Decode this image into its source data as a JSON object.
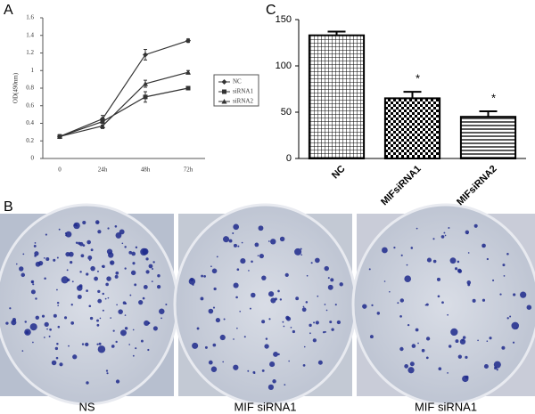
{
  "panels": {
    "labels": [
      "A",
      "B",
      "C"
    ]
  },
  "photos": {
    "captions": [
      "NS",
      "MIF siRNA1",
      "MIF siRNA1"
    ]
  },
  "chart_data": [
    {
      "type": "line",
      "y_label": "OD(490nm)",
      "categories": [
        "0",
        "24h",
        "48h",
        "72h"
      ],
      "series": [
        {
          "name": "NC",
          "marker": "diamond",
          "color": "#333333",
          "values": [
            0.25,
            0.45,
            1.18,
            1.34
          ],
          "errors": [
            0.02,
            0.04,
            0.06,
            0.02
          ]
        },
        {
          "name": "siRNA1",
          "marker": "square",
          "color": "#333333",
          "values": [
            0.25,
            0.42,
            0.7,
            0.8
          ],
          "errors": [
            0.02,
            0.04,
            0.06,
            0.01
          ]
        },
        {
          "name": "siRNA2",
          "marker": "triangle",
          "color": "#333333",
          "values": [
            0.25,
            0.37,
            0.85,
            0.98
          ],
          "errors": [
            0.02,
            0.03,
            0.04,
            0.02
          ]
        }
      ],
      "ylim": [
        0,
        1.6
      ],
      "yticks": [
        0,
        0.2,
        0.4,
        0.6,
        0.8,
        1,
        1.2,
        1.4,
        1.6
      ]
    },
    {
      "type": "bar",
      "categories": [
        "NC",
        "MIFsiRNA1",
        "MIFsiRNA2"
      ],
      "values": [
        133,
        65,
        45
      ],
      "errors": [
        4,
        7,
        6
      ],
      "annotations": [
        "",
        "*",
        "*"
      ],
      "patterns": [
        "grid",
        "checker",
        "hlines"
      ],
      "color": "#000000",
      "ylim": [
        0,
        150
      ],
      "yticks": [
        0,
        50,
        100,
        150
      ]
    }
  ]
}
